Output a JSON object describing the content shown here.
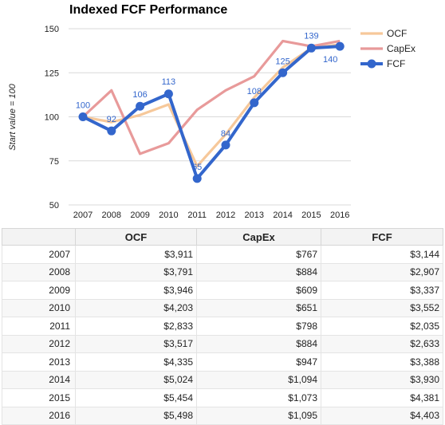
{
  "chart_data": {
    "type": "line",
    "title": "Indexed FCF Performance",
    "ylabel": "Start value = 100",
    "xlabel": "",
    "categories": [
      "2007",
      "2008",
      "2009",
      "2010",
      "2011",
      "2012",
      "2013",
      "2014",
      "2015",
      "2016"
    ],
    "ylim": [
      50,
      150
    ],
    "yticks": [
      50,
      75,
      100,
      125,
      150
    ],
    "grid": true,
    "legend_position": "right",
    "series": [
      {
        "name": "OCF",
        "color": "#f6c89a",
        "values": [
          100,
          97,
          101,
          107,
          72,
          90,
          111,
          128,
          139,
          141
        ]
      },
      {
        "name": "CapEx",
        "color": "#e89a9a",
        "values": [
          100,
          115,
          79,
          85,
          104,
          115,
          123,
          143,
          140,
          143
        ]
      },
      {
        "name": "FCF",
        "color": "#3366cc",
        "values": [
          100,
          92,
          106,
          113,
          65,
          84,
          108,
          125,
          139,
          140
        ],
        "labels": [
          "100",
          "92",
          "106",
          "113",
          "65",
          "84",
          "108",
          "125",
          "139",
          "140"
        ]
      }
    ]
  },
  "table": {
    "headers": [
      "",
      "OCF",
      "CapEx",
      "FCF"
    ],
    "rows": [
      [
        "2007",
        "$3,911",
        "$767",
        "$3,144"
      ],
      [
        "2008",
        "$3,791",
        "$884",
        "$2,907"
      ],
      [
        "2009",
        "$3,946",
        "$609",
        "$3,337"
      ],
      [
        "2010",
        "$4,203",
        "$651",
        "$3,552"
      ],
      [
        "2011",
        "$2,833",
        "$798",
        "$2,035"
      ],
      [
        "2012",
        "$3,517",
        "$884",
        "$2,633"
      ],
      [
        "2013",
        "$4,335",
        "$947",
        "$3,388"
      ],
      [
        "2014",
        "$5,024",
        "$1,094",
        "$3,930"
      ],
      [
        "2015",
        "$5,454",
        "$1,073",
        "$4,381"
      ],
      [
        "2016",
        "$5,498",
        "$1,095",
        "$4,403"
      ]
    ]
  }
}
